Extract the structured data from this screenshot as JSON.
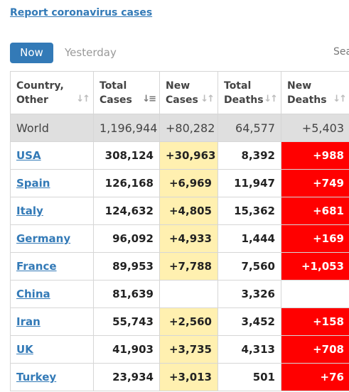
{
  "report_link": "Report coronavirus cases",
  "tabs": {
    "now": "Now",
    "yesterday": "Yesterday"
  },
  "search_label": "Sea",
  "columns": [
    {
      "line1": "Country,",
      "line2": "Other"
    },
    {
      "line1": "Total",
      "line2": "Cases"
    },
    {
      "line1": "New",
      "line2": "Cases"
    },
    {
      "line1": "Total",
      "line2": "Deaths"
    },
    {
      "line1": "New",
      "line2": "Deaths"
    }
  ],
  "world": {
    "country": "World",
    "total_cases": "1,196,944",
    "new_cases": "+80,282",
    "total_deaths": "64,577",
    "new_deaths": "+5,403"
  },
  "rows": [
    {
      "country": "USA",
      "total_cases": "308,124",
      "new_cases": "+30,963",
      "total_deaths": "8,392",
      "new_deaths": "+988"
    },
    {
      "country": "Spain",
      "total_cases": "126,168",
      "new_cases": "+6,969",
      "total_deaths": "11,947",
      "new_deaths": "+749"
    },
    {
      "country": "Italy",
      "total_cases": "124,632",
      "new_cases": "+4,805",
      "total_deaths": "15,362",
      "new_deaths": "+681"
    },
    {
      "country": "Germany",
      "total_cases": "96,092",
      "new_cases": "+4,933",
      "total_deaths": "1,444",
      "new_deaths": "+169"
    },
    {
      "country": "France",
      "total_cases": "89,953",
      "new_cases": "+7,788",
      "total_deaths": "7,560",
      "new_deaths": "+1,053"
    },
    {
      "country": "China",
      "total_cases": "81,639",
      "new_cases": "",
      "total_deaths": "3,326",
      "new_deaths": ""
    },
    {
      "country": "Iran",
      "total_cases": "55,743",
      "new_cases": "+2,560",
      "total_deaths": "3,452",
      "new_deaths": "+158"
    },
    {
      "country": "UK",
      "total_cases": "41,903",
      "new_cases": "+3,735",
      "total_deaths": "4,313",
      "new_deaths": "+708"
    },
    {
      "country": "Turkey",
      "total_cases": "23,934",
      "new_cases": "+3,013",
      "total_deaths": "501",
      "new_deaths": "+76"
    }
  ],
  "colors": {
    "link": "#337ab7",
    "new_cases_bg": "#fff0b0",
    "new_deaths_bg": "#ff0000",
    "world_bg": "#dfdfdf"
  }
}
